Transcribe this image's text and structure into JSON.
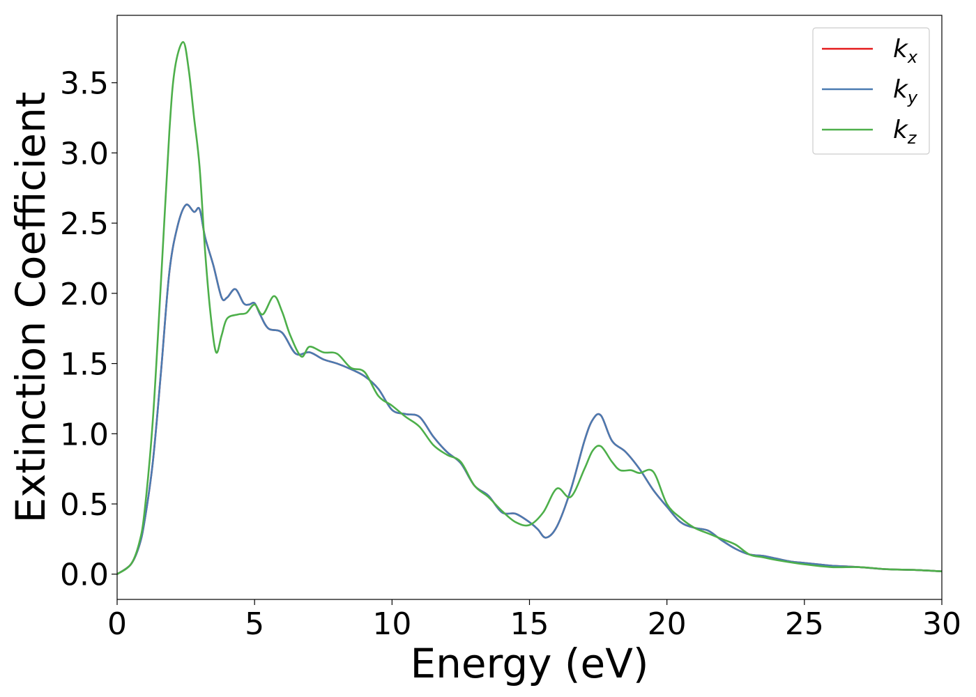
{
  "chart_data": {
    "type": "line",
    "xlabel": "Energy (eV)",
    "ylabel": "Extinction Coefficient",
    "xlim": [
      0,
      30
    ],
    "ylim": [
      -0.18,
      3.98
    ],
    "xticks": [
      "0",
      "5",
      "10",
      "15",
      "20",
      "25",
      "30"
    ],
    "yticks": [
      "0.0",
      "0.5",
      "1.0",
      "1.5",
      "2.0",
      "2.5",
      "3.0",
      "3.5"
    ],
    "grid": false,
    "legend_position": "top-right",
    "series": [
      {
        "name": "k_x",
        "label_main": "k",
        "label_sub": "x",
        "color": "#e41a1c",
        "x": [
          0,
          0.5,
          0.8,
          1.0,
          1.3,
          1.6,
          1.9,
          2.2,
          2.5,
          2.8,
          3.0,
          3.2,
          3.5,
          3.8,
          4.0,
          4.3,
          4.6,
          4.8,
          5.0,
          5.2,
          5.5,
          6.0,
          6.5,
          7.0,
          7.5,
          8.0,
          8.5,
          9.0,
          9.5,
          10.0,
          10.5,
          11.0,
          11.5,
          12.0,
          12.5,
          13.0,
          13.5,
          14.0,
          14.5,
          15.0,
          15.3,
          15.6,
          16.0,
          16.5,
          17.0,
          17.3,
          17.6,
          18.0,
          18.5,
          19.0,
          19.5,
          20.0,
          20.5,
          21.0,
          21.5,
          22.0,
          22.5,
          23.0,
          23.5,
          24.0,
          24.5,
          25.0,
          25.5,
          26.0,
          27.0,
          28.0,
          29.0,
          30.0
        ],
        "values": [
          0.0,
          0.07,
          0.2,
          0.38,
          0.8,
          1.45,
          2.15,
          2.48,
          2.63,
          2.58,
          2.6,
          2.4,
          2.2,
          1.97,
          1.97,
          2.03,
          1.93,
          1.92,
          1.93,
          1.85,
          1.75,
          1.72,
          1.57,
          1.58,
          1.53,
          1.5,
          1.46,
          1.41,
          1.32,
          1.17,
          1.14,
          1.12,
          0.98,
          0.87,
          0.79,
          0.63,
          0.56,
          0.44,
          0.43,
          0.37,
          0.32,
          0.26,
          0.34,
          0.6,
          0.95,
          1.1,
          1.13,
          0.95,
          0.87,
          0.75,
          0.6,
          0.48,
          0.37,
          0.33,
          0.31,
          0.24,
          0.18,
          0.14,
          0.13,
          0.11,
          0.09,
          0.08,
          0.07,
          0.06,
          0.05,
          0.035,
          0.03,
          0.02
        ]
      },
      {
        "name": "k_y",
        "label_main": "k",
        "label_sub": "y",
        "color": "#4a7bb1",
        "x": [
          0,
          0.5,
          0.8,
          1.0,
          1.3,
          1.6,
          1.9,
          2.2,
          2.5,
          2.8,
          3.0,
          3.2,
          3.5,
          3.8,
          4.0,
          4.3,
          4.6,
          4.8,
          5.0,
          5.2,
          5.5,
          6.0,
          6.5,
          7.0,
          7.5,
          8.0,
          8.5,
          9.0,
          9.5,
          10.0,
          10.5,
          11.0,
          11.5,
          12.0,
          12.5,
          13.0,
          13.5,
          14.0,
          14.5,
          15.0,
          15.3,
          15.6,
          16.0,
          16.5,
          17.0,
          17.3,
          17.6,
          18.0,
          18.5,
          19.0,
          19.5,
          20.0,
          20.5,
          21.0,
          21.5,
          22.0,
          22.5,
          23.0,
          23.5,
          24.0,
          24.5,
          25.0,
          25.5,
          26.0,
          27.0,
          28.0,
          29.0,
          30.0
        ],
        "values": [
          0.0,
          0.07,
          0.2,
          0.38,
          0.8,
          1.45,
          2.15,
          2.48,
          2.63,
          2.58,
          2.6,
          2.4,
          2.2,
          1.97,
          1.97,
          2.03,
          1.93,
          1.92,
          1.93,
          1.85,
          1.75,
          1.72,
          1.57,
          1.58,
          1.53,
          1.5,
          1.46,
          1.41,
          1.32,
          1.17,
          1.14,
          1.12,
          0.98,
          0.87,
          0.79,
          0.63,
          0.56,
          0.44,
          0.43,
          0.37,
          0.32,
          0.26,
          0.34,
          0.6,
          0.95,
          1.1,
          1.13,
          0.95,
          0.87,
          0.75,
          0.6,
          0.48,
          0.37,
          0.33,
          0.31,
          0.24,
          0.18,
          0.14,
          0.13,
          0.11,
          0.09,
          0.08,
          0.07,
          0.06,
          0.05,
          0.035,
          0.03,
          0.02
        ]
      },
      {
        "name": "k_z",
        "label_main": "k",
        "label_sub": "z",
        "color": "#4daf4a",
        "x": [
          0,
          0.5,
          0.8,
          1.0,
          1.3,
          1.6,
          1.9,
          2.1,
          2.4,
          2.6,
          2.8,
          3.0,
          3.2,
          3.4,
          3.6,
          3.8,
          4.0,
          4.4,
          4.7,
          5.0,
          5.3,
          5.7,
          6.0,
          6.3,
          6.7,
          7.0,
          7.5,
          8.0,
          8.5,
          9.0,
          9.5,
          10.0,
          10.5,
          11.0,
          11.5,
          12.0,
          12.5,
          13.0,
          13.5,
          14.0,
          14.5,
          15.0,
          15.5,
          16.0,
          16.5,
          17.0,
          17.3,
          17.6,
          18.0,
          18.3,
          18.7,
          19.0,
          19.5,
          20.0,
          20.5,
          21.0,
          21.5,
          22.0,
          22.5,
          23.0,
          23.5,
          24.0,
          25.0,
          26.0,
          27.0,
          28.0,
          29.0,
          30.0
        ],
        "values": [
          0.0,
          0.07,
          0.22,
          0.45,
          1.1,
          2.1,
          3.15,
          3.6,
          3.79,
          3.6,
          3.25,
          2.9,
          2.3,
          1.85,
          1.58,
          1.7,
          1.82,
          1.85,
          1.86,
          1.92,
          1.85,
          1.98,
          1.87,
          1.7,
          1.55,
          1.62,
          1.58,
          1.57,
          1.47,
          1.44,
          1.27,
          1.2,
          1.12,
          1.05,
          0.92,
          0.85,
          0.8,
          0.63,
          0.55,
          0.45,
          0.37,
          0.35,
          0.44,
          0.61,
          0.55,
          0.75,
          0.88,
          0.91,
          0.8,
          0.74,
          0.74,
          0.72,
          0.73,
          0.5,
          0.4,
          0.33,
          0.29,
          0.25,
          0.21,
          0.14,
          0.12,
          0.1,
          0.07,
          0.05,
          0.05,
          0.035,
          0.03,
          0.02
        ]
      }
    ]
  }
}
